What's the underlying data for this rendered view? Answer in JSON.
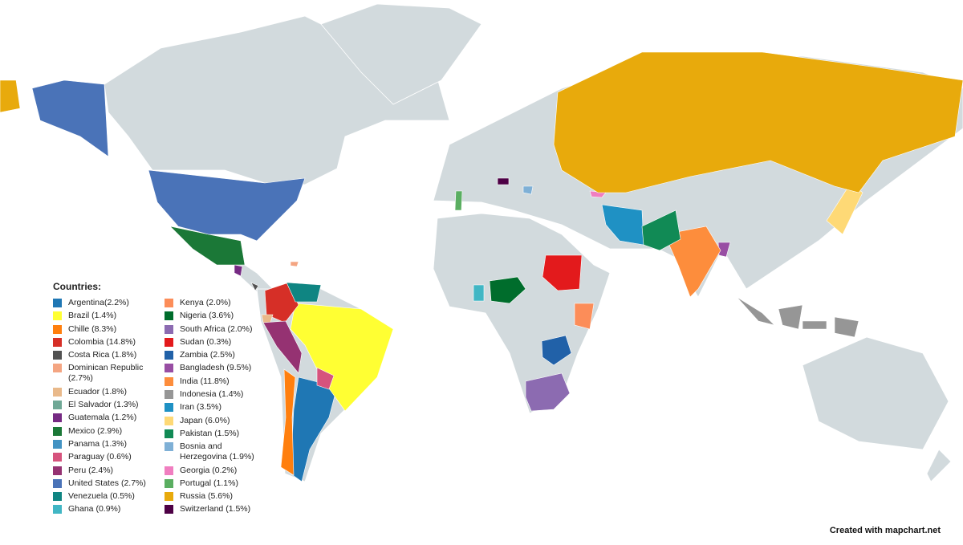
{
  "legend": {
    "title": "Countries:",
    "items": [
      {
        "label": "Argentina(2.2%)",
        "color": "#1f77b4",
        "key": "argentina"
      },
      {
        "label": "Brazil (1.4%)",
        "color": "#ffff33",
        "key": "brazil"
      },
      {
        "label": "Chille (8.3%)",
        "color": "#ff7f0e",
        "key": "chile"
      },
      {
        "label": "Colombia (14.8%)",
        "color": "#d62f27",
        "key": "colombia"
      },
      {
        "label": "Costa Rica (1.8%)",
        "color": "#525252",
        "key": "costa-rica"
      },
      {
        "label": "Dominican Republic (2.7%)",
        "color": "#f4a582",
        "key": "dominican-republic"
      },
      {
        "label": "Ecuador (1.8%)",
        "color": "#e9b98a",
        "key": "ecuador"
      },
      {
        "label": "El Salvador (1.3%)",
        "color": "#6fa896",
        "key": "el-salvador"
      },
      {
        "label": "Guatemala (1.2%)",
        "color": "#762a83",
        "key": "guatemala"
      },
      {
        "label": "Mexico (2.9%)",
        "color": "#1b7837",
        "key": "mexico"
      },
      {
        "label": "Panama (1.3%)",
        "color": "#4393c3",
        "key": "panama"
      },
      {
        "label": "Paraguay (0.6%)",
        "color": "#d6537d",
        "key": "paraguay"
      },
      {
        "label": "Peru (2.4%)",
        "color": "#953272",
        "key": "peru"
      },
      {
        "label": "United States (2.7%)",
        "color": "#4a73b8",
        "key": "united-states"
      },
      {
        "label": "Venezuela (0.5%)",
        "color": "#0f8582",
        "key": "venezuela"
      },
      {
        "label": "Ghana (0.9%)",
        "color": "#41b6c4",
        "key": "ghana"
      },
      {
        "label": "Kenya (2.0%)",
        "color": "#fc8d59",
        "key": "kenya"
      },
      {
        "label": "Nigeria (3.6%)",
        "color": "#006d2c",
        "key": "nigeria"
      },
      {
        "label": "South Africa (2.0%)",
        "color": "#8c6bb1",
        "key": "south-africa"
      },
      {
        "label": "Sudan (0.3%)",
        "color": "#e31a1c",
        "key": "sudan"
      },
      {
        "label": "Zambia (2.5%)",
        "color": "#2161a8",
        "key": "zambia"
      },
      {
        "label": "Bangladesh (9.5%)",
        "color": "#984ea3",
        "key": "bangladesh"
      },
      {
        "label": "India (11.8%)",
        "color": "#fd8d3c",
        "key": "india"
      },
      {
        "label": "Indonesia (1.4%)",
        "color": "#969696",
        "key": "indonesia"
      },
      {
        "label": "Iran (3.5%)",
        "color": "#1f91c4",
        "key": "iran"
      },
      {
        "label": "Japan (6.0%)",
        "color": "#fed976",
        "key": "japan"
      },
      {
        "label": "Pakistan (1.5%)",
        "color": "#118a55",
        "key": "pakistan"
      },
      {
        "label": "Bosnia and Herzegovina (1.9%)",
        "color": "#7fb0d6",
        "key": "bosnia"
      },
      {
        "label": "Georgia (0.2%)",
        "color": "#f07ec0",
        "key": "georgia"
      },
      {
        "label": "Portugal (1.1%)",
        "color": "#5aae61",
        "key": "portugal"
      },
      {
        "label": "Russia (5.6%)",
        "color": "#e8aa0c",
        "key": "russia"
      },
      {
        "label": "Switzerland (1.5%)",
        "color": "#4d0045",
        "key": "switzerland"
      }
    ]
  },
  "base_color": "#d2dadd",
  "credit": "Created with mapchart.net"
}
